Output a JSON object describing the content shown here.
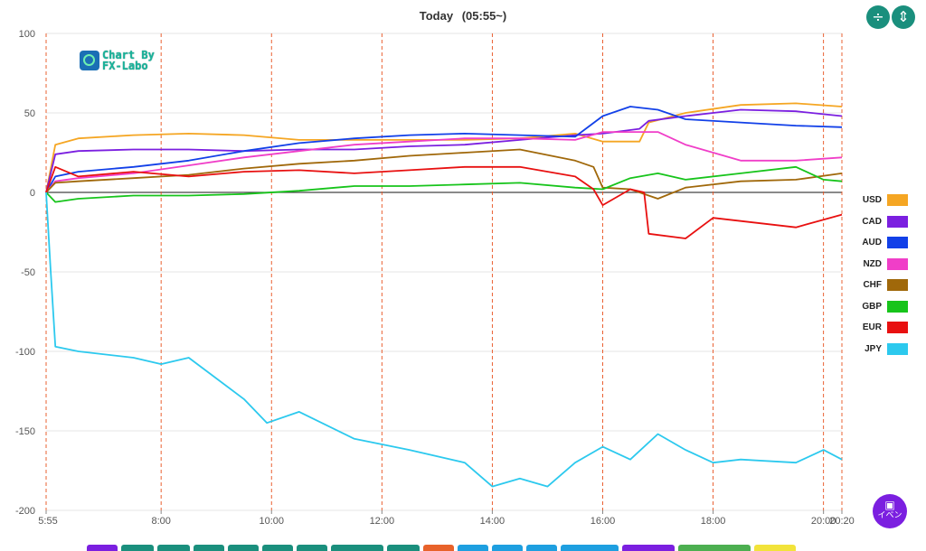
{
  "header": {
    "title": "Today",
    "subtitle": "(05:55~)"
  },
  "controls": {
    "compress_icon": "compress-vertical-icon",
    "expand_icon": "expand-vertical-icon"
  },
  "logo": {
    "line1": "Chart By",
    "line2": "FX-Labo"
  },
  "event_button": {
    "label": "イベン",
    "icon": "calendar-icon"
  },
  "bottom_tabs": [
    {
      "color": "#7b1fe0"
    },
    {
      "color": "#1a8f7d"
    },
    {
      "color": "#1a8f7d"
    },
    {
      "color": "#1a8f7d"
    },
    {
      "color": "#1a8f7d"
    },
    {
      "color": "#1a8f7d"
    },
    {
      "color": "#1a8f7d"
    },
    {
      "color": "#1a8f7d"
    },
    {
      "color": "#1a8f7d"
    },
    {
      "color": "#e8622a"
    },
    {
      "color": "#1e9fe0"
    },
    {
      "color": "#1e9fe0"
    },
    {
      "color": "#1e9fe0"
    },
    {
      "color": "#1e9fe0"
    },
    {
      "color": "#7b1fe0"
    },
    {
      "color": "#4caf50"
    },
    {
      "color": "#f2e33a"
    }
  ],
  "chart_data": {
    "type": "line",
    "title": "Today",
    "subtitle": "(05:55~)",
    "xlabel": "",
    "ylabel": "",
    "ylim": [
      -200,
      100
    ],
    "yticks": [
      100,
      50,
      0,
      -50,
      -100,
      -150,
      -200
    ],
    "xticks": [
      "5:55",
      "8:00",
      "10:00",
      "12:00",
      "14:00",
      "16:00",
      "18:00",
      "20:00",
      "20:20"
    ],
    "x_range": [
      "5:55",
      "20:20"
    ],
    "grid": "horizontal",
    "legend_position": "right",
    "series": [
      {
        "name": "USD",
        "color": "#f5a623",
        "points": [
          [
            "5:55",
            0
          ],
          [
            "6:05",
            30
          ],
          [
            "6:30",
            34
          ],
          [
            "7:30",
            36
          ],
          [
            "8:30",
            37
          ],
          [
            "9:30",
            36
          ],
          [
            "10:30",
            33
          ],
          [
            "11:30",
            33
          ],
          [
            "12:30",
            33
          ],
          [
            "13:30",
            33
          ],
          [
            "14:30",
            34
          ],
          [
            "15:30",
            37
          ],
          [
            "16:00",
            32
          ],
          [
            "16:40",
            32
          ],
          [
            "16:50",
            44
          ],
          [
            "17:30",
            50
          ],
          [
            "18:30",
            55
          ],
          [
            "19:30",
            56
          ],
          [
            "20:20",
            54
          ]
        ]
      },
      {
        "name": "CAD",
        "color": "#7b1fe0",
        "points": [
          [
            "5:55",
            0
          ],
          [
            "6:05",
            24
          ],
          [
            "6:30",
            26
          ],
          [
            "7:30",
            27
          ],
          [
            "8:30",
            27
          ],
          [
            "9:30",
            26
          ],
          [
            "10:30",
            27
          ],
          [
            "11:30",
            27
          ],
          [
            "12:30",
            29
          ],
          [
            "13:30",
            30
          ],
          [
            "14:30",
            33
          ],
          [
            "15:30",
            36
          ],
          [
            "16:00",
            37
          ],
          [
            "16:40",
            40
          ],
          [
            "16:50",
            45
          ],
          [
            "17:30",
            48
          ],
          [
            "18:30",
            52
          ],
          [
            "19:30",
            51
          ],
          [
            "20:20",
            48
          ]
        ]
      },
      {
        "name": "AUD",
        "color": "#1240e8",
        "points": [
          [
            "5:55",
            0
          ],
          [
            "6:05",
            10
          ],
          [
            "6:30",
            13
          ],
          [
            "7:30",
            16
          ],
          [
            "8:30",
            20
          ],
          [
            "9:30",
            26
          ],
          [
            "10:30",
            31
          ],
          [
            "11:30",
            34
          ],
          [
            "12:30",
            36
          ],
          [
            "13:30",
            37
          ],
          [
            "14:30",
            36
          ],
          [
            "15:30",
            35
          ],
          [
            "16:00",
            48
          ],
          [
            "16:30",
            54
          ],
          [
            "17:00",
            52
          ],
          [
            "17:30",
            46
          ],
          [
            "18:30",
            44
          ],
          [
            "19:30",
            42
          ],
          [
            "20:20",
            41
          ]
        ]
      },
      {
        "name": "NZD",
        "color": "#f03ec8",
        "points": [
          [
            "5:55",
            0
          ],
          [
            "6:05",
            7
          ],
          [
            "6:30",
            9
          ],
          [
            "7:30",
            12
          ],
          [
            "8:30",
            17
          ],
          [
            "9:30",
            22
          ],
          [
            "10:30",
            26
          ],
          [
            "11:30",
            30
          ],
          [
            "12:30",
            32
          ],
          [
            "13:30",
            34
          ],
          [
            "14:30",
            34
          ],
          [
            "15:30",
            33
          ],
          [
            "16:00",
            38
          ],
          [
            "16:30",
            38
          ],
          [
            "17:00",
            38
          ],
          [
            "17:30",
            30
          ],
          [
            "18:30",
            20
          ],
          [
            "19:30",
            20
          ],
          [
            "20:20",
            22
          ]
        ]
      },
      {
        "name": "CHF",
        "color": "#a0680a",
        "points": [
          [
            "5:55",
            0
          ],
          [
            "6:05",
            6
          ],
          [
            "6:30",
            7
          ],
          [
            "7:30",
            9
          ],
          [
            "8:30",
            11
          ],
          [
            "9:30",
            15
          ],
          [
            "10:30",
            18
          ],
          [
            "11:30",
            20
          ],
          [
            "12:30",
            23
          ],
          [
            "13:30",
            25
          ],
          [
            "14:30",
            27
          ],
          [
            "15:30",
            20
          ],
          [
            "15:50",
            16
          ],
          [
            "16:00",
            3
          ],
          [
            "16:30",
            2
          ],
          [
            "17:00",
            -4
          ],
          [
            "17:30",
            3
          ],
          [
            "18:30",
            7
          ],
          [
            "19:30",
            8
          ],
          [
            "20:20",
            12
          ]
        ]
      },
      {
        "name": "GBP",
        "color": "#17c41b",
        "points": [
          [
            "5:55",
            0
          ],
          [
            "6:05",
            -6
          ],
          [
            "6:30",
            -4
          ],
          [
            "7:30",
            -2
          ],
          [
            "8:30",
            -2
          ],
          [
            "9:30",
            -1
          ],
          [
            "10:30",
            1
          ],
          [
            "11:30",
            4
          ],
          [
            "12:30",
            4
          ],
          [
            "13:30",
            5
          ],
          [
            "14:30",
            6
          ],
          [
            "15:30",
            3
          ],
          [
            "16:00",
            2
          ],
          [
            "16:30",
            9
          ],
          [
            "17:00",
            12
          ],
          [
            "17:30",
            8
          ],
          [
            "18:30",
            12
          ],
          [
            "19:30",
            16
          ],
          [
            "20:00",
            8
          ],
          [
            "20:20",
            7
          ]
        ]
      },
      {
        "name": "EUR",
        "color": "#e81010",
        "points": [
          [
            "5:55",
            0
          ],
          [
            "6:05",
            16
          ],
          [
            "6:30",
            10
          ],
          [
            "7:30",
            13
          ],
          [
            "8:30",
            10
          ],
          [
            "9:30",
            13
          ],
          [
            "10:30",
            14
          ],
          [
            "11:30",
            12
          ],
          [
            "12:30",
            14
          ],
          [
            "13:30",
            16
          ],
          [
            "14:30",
            16
          ],
          [
            "15:30",
            10
          ],
          [
            "15:50",
            2
          ],
          [
            "16:00",
            -8
          ],
          [
            "16:30",
            2
          ],
          [
            "16:45",
            0
          ],
          [
            "16:50",
            -26
          ],
          [
            "17:30",
            -29
          ],
          [
            "18:00",
            -16
          ],
          [
            "18:30",
            -18
          ],
          [
            "19:30",
            -22
          ],
          [
            "20:20",
            -14
          ]
        ]
      },
      {
        "name": "JPY",
        "color": "#2cc9ee",
        "points": [
          [
            "5:55",
            0
          ],
          [
            "6:00",
            -50
          ],
          [
            "6:05",
            -97
          ],
          [
            "6:30",
            -100
          ],
          [
            "7:30",
            -104
          ],
          [
            "8:00",
            -108
          ],
          [
            "8:30",
            -104
          ],
          [
            "9:30",
            -130
          ],
          [
            "9:55",
            -145
          ],
          [
            "10:30",
            -138
          ],
          [
            "11:30",
            -155
          ],
          [
            "12:30",
            -162
          ],
          [
            "13:30",
            -170
          ],
          [
            "14:00",
            -185
          ],
          [
            "14:30",
            -180
          ],
          [
            "15:00",
            -185
          ],
          [
            "15:30",
            -170
          ],
          [
            "16:00",
            -160
          ],
          [
            "16:30",
            -168
          ],
          [
            "17:00",
            -152
          ],
          [
            "17:30",
            -162
          ],
          [
            "18:00",
            -170
          ],
          [
            "18:30",
            -168
          ],
          [
            "19:30",
            -170
          ],
          [
            "20:00",
            -162
          ],
          [
            "20:20",
            -168
          ]
        ]
      }
    ]
  }
}
